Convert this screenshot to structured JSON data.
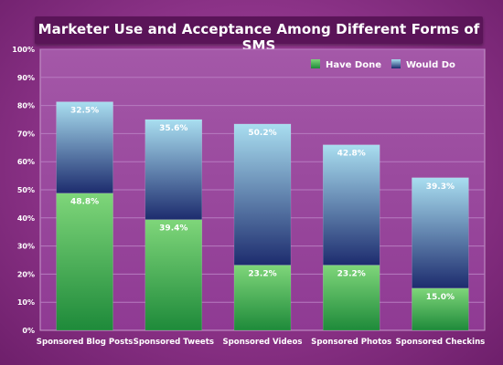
{
  "colors": {
    "have_done_top": "#7fd67a",
    "have_done_bottom": "#1e8a3a",
    "would_do_top": "#a9def0",
    "would_do_bottom": "#1d2c6e",
    "grid": "#b77bc0",
    "plot_bg": "#9c47a0"
  },
  "chart_data": {
    "type": "bar",
    "stacked": true,
    "title": "Marketer Use and Acceptance Among Different Forms of SMS",
    "xlabel": "",
    "ylabel": "",
    "ylim": [
      0,
      100
    ],
    "yticks": [
      "0%",
      "10%",
      "20%",
      "30%",
      "40%",
      "50%",
      "60%",
      "70%",
      "80%",
      "90%",
      "100%"
    ],
    "categories": [
      "Sponsored Blog Posts",
      "Sponsored Tweets",
      "Sponsored Videos",
      "Sponsored Photos",
      "Sponsored Checkins"
    ],
    "series": [
      {
        "name": "Have Done",
        "values": [
          48.8,
          39.4,
          23.2,
          23.2,
          15.0
        ],
        "labels": [
          "48.8%",
          "39.4%",
          "23.2%",
          "23.2%",
          "15.0%"
        ]
      },
      {
        "name": "Would Do",
        "values": [
          32.5,
          35.6,
          50.2,
          42.8,
          39.3
        ],
        "labels": [
          "32.5%",
          "35.6%",
          "50.2%",
          "42.8%",
          "39.3%"
        ]
      }
    ],
    "legend_position": "top-right",
    "grid": true
  }
}
